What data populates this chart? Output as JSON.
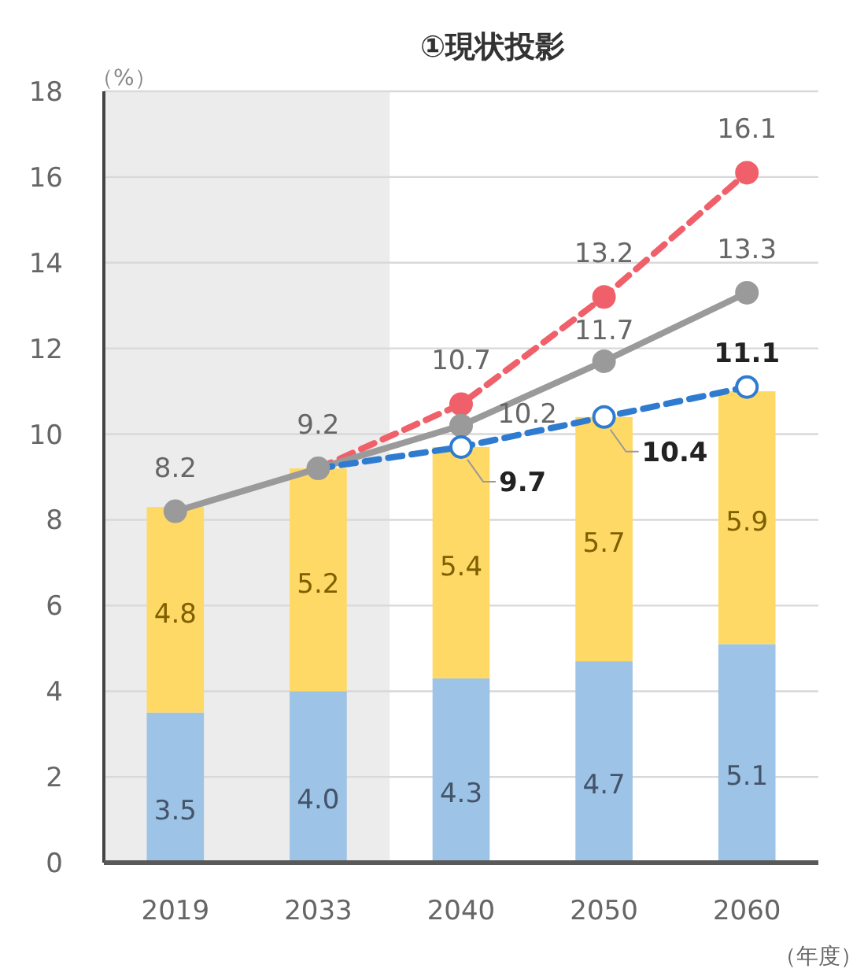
{
  "chart_data": {
    "type": "bar",
    "title": "①現状投影",
    "ylabel": "（%）",
    "xlabel": "（年度）",
    "categories": [
      "2019",
      "2033",
      "2040",
      "2050",
      "2060"
    ],
    "stacked": true,
    "ylim": [
      0,
      18
    ],
    "yticks": [
      0,
      2,
      4,
      6,
      8,
      10,
      12,
      14,
      16,
      18
    ],
    "grid": "y",
    "bands": [
      {
        "axis": "x",
        "from": "2019",
        "to": "2033",
        "color": "#ececec"
      }
    ],
    "series": [
      {
        "color": "#9dc3e6",
        "values": [
          3.5,
          4.0,
          4.3,
          4.7,
          5.1
        ],
        "value_labels": [
          "3.5",
          "4.0",
          "4.3",
          "4.7",
          "5.1"
        ]
      },
      {
        "color": "#ffd966",
        "values": [
          4.8,
          5.2,
          5.4,
          5.7,
          5.9
        ],
        "value_labels": [
          "4.8",
          "5.2",
          "5.4",
          "5.7",
          "5.9"
        ]
      },
      {
        "type": "line",
        "color": "#f0606a",
        "line_style": "dashed",
        "marker": "circle",
        "values": [
          null,
          9.2,
          10.7,
          13.2,
          16.1
        ],
        "value_labels": [
          null,
          null,
          "10.7",
          "13.2",
          "16.1"
        ]
      },
      {
        "type": "line",
        "color": "#9a9a9a",
        "line_style": "solid",
        "marker": "circle",
        "values": [
          8.2,
          9.2,
          10.2,
          11.7,
          13.3
        ],
        "value_labels": [
          "8.2",
          "9.2",
          "10.2",
          "11.7",
          "13.3"
        ]
      },
      {
        "type": "line",
        "color": "#2e7bd0",
        "line_style": "dashed",
        "marker": "circle",
        "values": [
          null,
          9.2,
          9.7,
          10.4,
          11.1
        ],
        "value_labels": [
          null,
          null,
          "9.7",
          "10.4",
          "11.1"
        ]
      }
    ]
  }
}
